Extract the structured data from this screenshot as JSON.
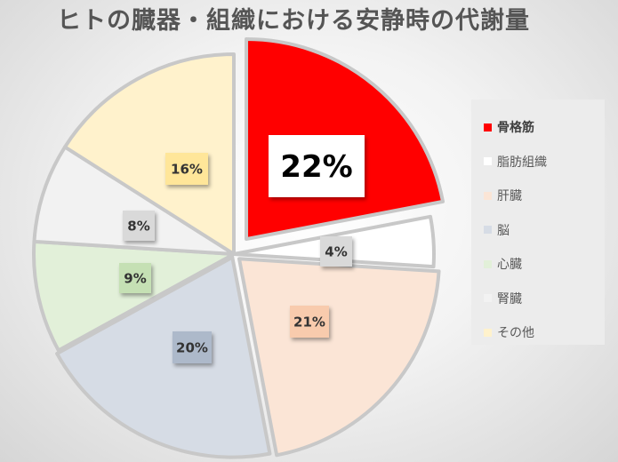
{
  "chart_data": {
    "type": "pie",
    "title": "ヒトの臓器・組織における安静時の代謝量",
    "start_angle_deg": 0,
    "direction": "clockwise",
    "legend_position": "right",
    "slices": [
      {
        "label": "骨格筋",
        "value": 22,
        "display": "22%",
        "color": "#ff0000",
        "label_bg": "#ffffff",
        "label_text_color": "#000000",
        "emphasized": true
      },
      {
        "label": "脂肪組織",
        "value": 4,
        "display": "4%",
        "color": "#ffffff",
        "label_bg": "#d9d9d9",
        "label_text_color": "#333333"
      },
      {
        "label": "肝臓",
        "value": 21,
        "display": "21%",
        "color": "#fbe5d6",
        "label_bg": "#f8cbad",
        "label_text_color": "#333333"
      },
      {
        "label": "脳",
        "value": 20,
        "display": "20%",
        "color": "#d6dce5",
        "label_bg": "#adb9ca",
        "label_text_color": "#333333"
      },
      {
        "label": "心臓",
        "value": 9,
        "display": "9%",
        "color": "#e2f0d9",
        "label_bg": "#c5e0b4",
        "label_text_color": "#333333"
      },
      {
        "label": "腎臓",
        "value": 8,
        "display": "8%",
        "color": "#f2f2f2",
        "label_bg": "#d9d9d9",
        "label_text_color": "#333333"
      },
      {
        "label": "その他",
        "value": 16,
        "display": "16%",
        "color": "#fff2cc",
        "label_bg": "#ffe699",
        "label_text_color": "#333333"
      }
    ]
  }
}
